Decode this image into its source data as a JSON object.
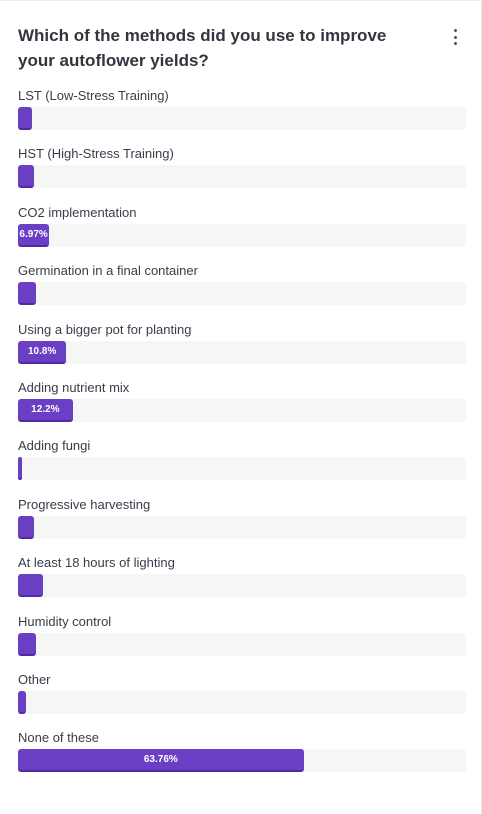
{
  "poll": {
    "question": "Which of the methods did you use to improve your autoflower yields?",
    "menu_icon": "vertical-dots-icon",
    "accent_color": "#6a3fc4",
    "options": [
      {
        "label": "LST (Low-Stress Training)",
        "percent": 3.2,
        "value_text": ""
      },
      {
        "label": "HST (High-Stress Training)",
        "percent": 3.5,
        "value_text": ""
      },
      {
        "label": "CO2 implementation",
        "percent": 6.97,
        "value_text": "6.97%"
      },
      {
        "label": "Germination in a final container",
        "percent": 4.0,
        "value_text": ""
      },
      {
        "label": "Using a bigger pot for planting",
        "percent": 10.8,
        "value_text": "10.8%"
      },
      {
        "label": "Adding nutrient mix",
        "percent": 12.2,
        "value_text": "12.2%"
      },
      {
        "label": "Adding fungi",
        "percent": 1.0,
        "value_text": ""
      },
      {
        "label": "Progressive harvesting",
        "percent": 3.5,
        "value_text": ""
      },
      {
        "label": "At least 18 hours of lighting",
        "percent": 5.6,
        "value_text": ""
      },
      {
        "label": "Humidity control",
        "percent": 4.0,
        "value_text": ""
      },
      {
        "label": "Other",
        "percent": 1.7,
        "value_text": ""
      },
      {
        "label": "None of these",
        "percent": 63.76,
        "value_text": "63.76%"
      }
    ]
  }
}
